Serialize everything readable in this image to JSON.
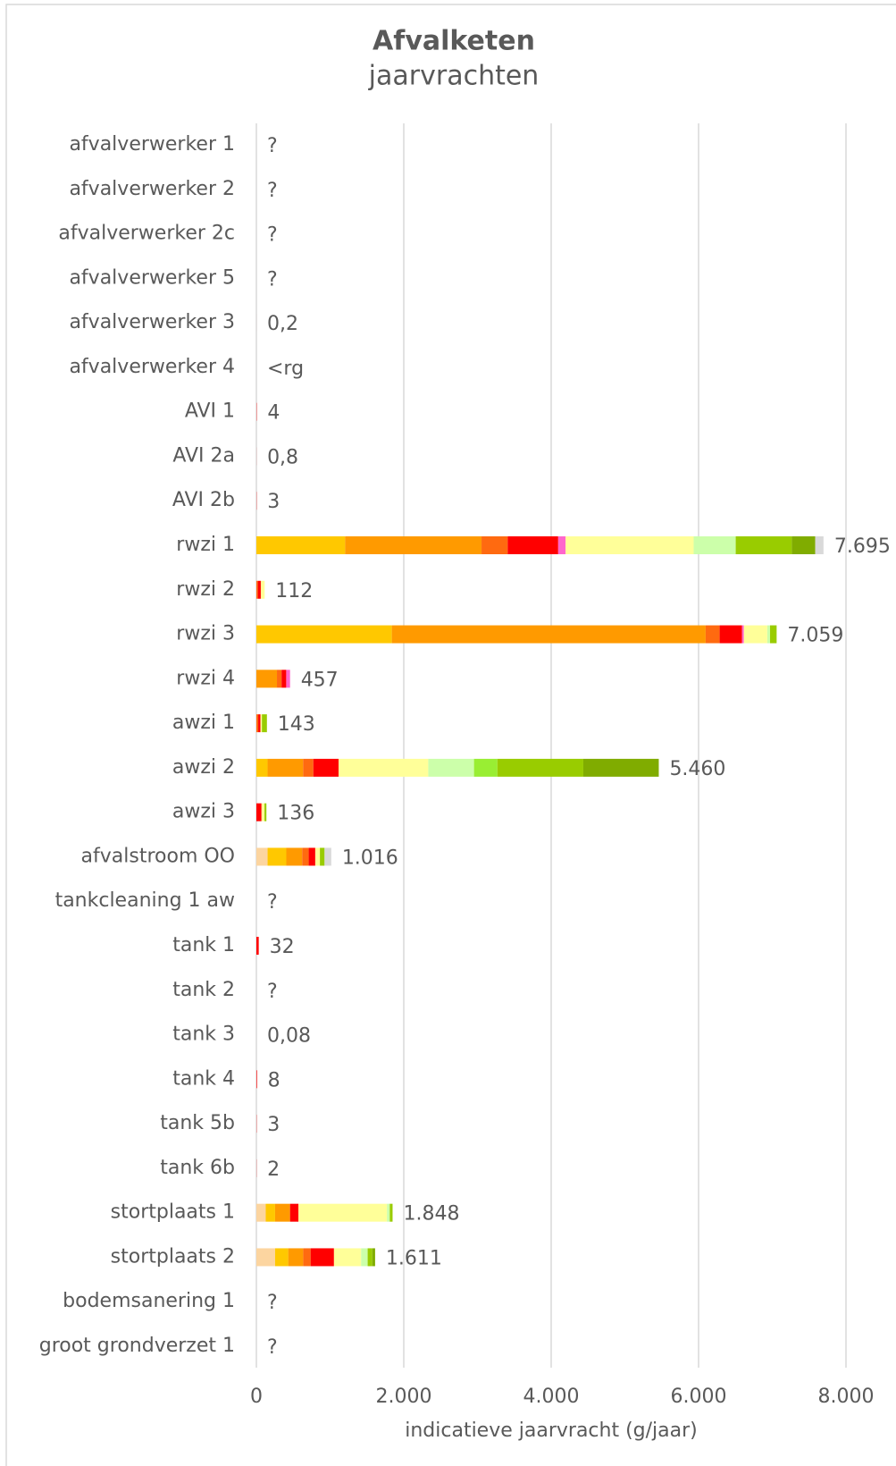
{
  "chart_data": {
    "type": "stacked-barh",
    "title": "Afvalketen",
    "subtitle": "jaarvrachten",
    "xlabel": "indicatieve jaarvracht (g/jaar)",
    "categories": [
      "afvalverwerker 1",
      "afvalverwerker 2",
      "afvalverwerker 2c",
      "afvalverwerker 5",
      "afvalverwerker 3",
      "afvalverwerker 4",
      "AVI 1",
      "AVI 2a",
      "AVI 2b",
      "rwzi 1",
      "rwzi 2",
      "rwzi 3",
      "rwzi 4",
      "awzi 1",
      "awzi 2",
      "awzi 3",
      "afvalstroom OO",
      "tankcleaning 1 aw",
      "tank 1",
      "tank 2",
      "tank 3",
      "tank 4",
      "tank 5b",
      "tank 6b",
      "stortplaats 1",
      "stortplaats 2",
      "bodemsanering 1",
      "groot grondverzet 1"
    ],
    "series": [
      {
        "color": "#fcd5a0",
        "values": [
          null,
          null,
          null,
          null,
          null,
          null,
          null,
          null,
          null,
          null,
          null,
          null,
          null,
          null,
          null,
          null,
          152,
          null,
          null,
          null,
          null,
          null,
          null,
          null,
          127,
          254,
          null,
          null
        ]
      },
      {
        "color": "#ffc800",
        "values": [
          null,
          null,
          null,
          null,
          null,
          null,
          null,
          null,
          null,
          1204,
          null,
          1838,
          null,
          null,
          152,
          null,
          254,
          null,
          null,
          null,
          null,
          null,
          null,
          null,
          127,
          178,
          null,
          null
        ]
      },
      {
        "color": "#ff9a00",
        "values": [
          null,
          null,
          null,
          null,
          null,
          null,
          null,
          null,
          null,
          1851,
          null,
          4258,
          279,
          null,
          482,
          null,
          215,
          null,
          null,
          null,
          null,
          null,
          null,
          null,
          203,
          203,
          null,
          null
        ]
      },
      {
        "color": "#ff6a10",
        "values": [
          null,
          null,
          null,
          null,
          null,
          null,
          null,
          null,
          null,
          355,
          20,
          190,
          63,
          25,
          139,
          null,
          89,
          null,
          null,
          null,
          null,
          null,
          null,
          null,
          null,
          101,
          null,
          null
        ]
      },
      {
        "color": "#ff0000",
        "values": [
          null,
          null,
          null,
          null,
          0.2,
          null,
          4,
          0.8,
          3,
          685,
          40,
          304,
          63,
          30,
          342,
          70,
          89,
          null,
          32,
          null,
          0.08,
          8,
          3,
          2,
          114,
          317,
          null,
          null
        ]
      },
      {
        "color": "#ff66cc",
        "values": [
          null,
          null,
          null,
          null,
          null,
          null,
          null,
          null,
          null,
          101,
          null,
          25,
          52,
          null,
          null,
          null,
          null,
          null,
          null,
          null,
          null,
          null,
          null,
          null,
          null,
          null,
          null,
          null
        ]
      },
      {
        "color": "#ffff99",
        "values": [
          null,
          null,
          null,
          null,
          null,
          null,
          null,
          null,
          null,
          1737,
          52,
          317,
          null,
          20,
          1217,
          40,
          63,
          null,
          null,
          null,
          null,
          null,
          null,
          null,
          1201,
          368,
          null,
          null
        ]
      },
      {
        "color": "#ccffaa",
        "values": [
          null,
          null,
          null,
          null,
          null,
          null,
          null,
          null,
          null,
          571,
          null,
          38,
          null,
          null,
          621,
          null,
          null,
          null,
          null,
          null,
          null,
          null,
          null,
          null,
          38,
          89,
          null,
          null
        ]
      },
      {
        "color": "#99ee33",
        "values": [
          null,
          null,
          null,
          null,
          null,
          null,
          null,
          null,
          null,
          null,
          null,
          null,
          null,
          null,
          317,
          null,
          null,
          null,
          null,
          null,
          null,
          null,
          null,
          null,
          null,
          null,
          null,
          null
        ]
      },
      {
        "color": "#99cc00",
        "values": [
          null,
          null,
          null,
          null,
          null,
          null,
          null,
          null,
          null,
          761,
          null,
          89,
          null,
          68,
          1166,
          26,
          63,
          null,
          null,
          null,
          null,
          null,
          null,
          null,
          38,
          63,
          null,
          null
        ]
      },
      {
        "color": "#80ac00",
        "values": [
          null,
          null,
          null,
          null,
          null,
          null,
          null,
          null,
          null,
          317,
          null,
          null,
          null,
          null,
          1024,
          null,
          null,
          null,
          null,
          null,
          null,
          null,
          null,
          null,
          null,
          38,
          null,
          null
        ]
      },
      {
        "color": "#d9d9d9",
        "values": [
          null,
          null,
          null,
          null,
          null,
          null,
          null,
          null,
          null,
          113,
          null,
          null,
          null,
          null,
          null,
          null,
          91,
          null,
          null,
          null,
          null,
          null,
          null,
          null,
          null,
          null,
          null,
          null
        ]
      }
    ],
    "totals": {
      "values": [
        null,
        null,
        null,
        null,
        0.2,
        null,
        4,
        0.8,
        3,
        7695,
        112,
        7059,
        457,
        143,
        5460,
        136,
        1016,
        null,
        32,
        null,
        0.08,
        8,
        3,
        2,
        1848,
        1611,
        null,
        null
      ],
      "value_labels": [
        "?",
        "?",
        "?",
        "?",
        "0,2",
        "<rg",
        "4",
        "0,8",
        "3",
        "7.695",
        "112",
        "7.059",
        "457",
        "143",
        "5.460",
        "136",
        "1.016",
        "?",
        "32",
        "?",
        "0,08",
        "8",
        "3",
        "2",
        "1.848",
        "1.611",
        "?",
        "?"
      ]
    },
    "xlim": [
      0,
      8000
    ],
    "xticks": [
      0,
      {
        "value": 2000,
        "label": "2.000"
      },
      {
        "value": 4000,
        "label": "4.000"
      },
      {
        "value": 6000,
        "label": "6.000"
      },
      {
        "value": 8000,
        "label": "8.000"
      }
    ],
    "grid": true
  }
}
